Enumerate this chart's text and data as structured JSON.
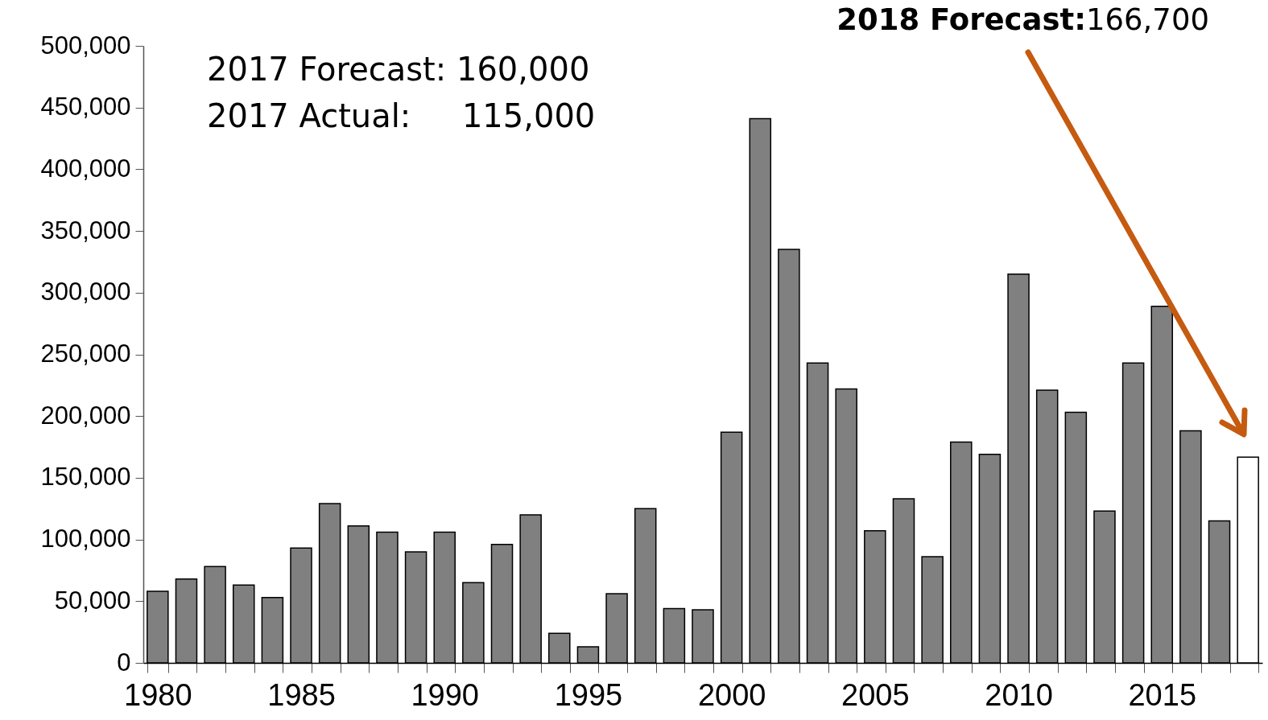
{
  "chart_data": {
    "type": "bar",
    "categories": [
      "1980",
      null,
      null,
      null,
      null,
      "1985",
      null,
      null,
      null,
      null,
      "1990",
      null,
      null,
      null,
      null,
      "1995",
      null,
      null,
      null,
      null,
      "2000",
      null,
      null,
      null,
      null,
      "2005",
      null,
      null,
      null,
      null,
      "2010",
      null,
      null,
      null,
      null,
      "2015",
      null,
      null,
      null
    ],
    "values": [
      58000,
      68000,
      78000,
      63000,
      53000,
      93000,
      129000,
      111000,
      106000,
      90000,
      106000,
      65000,
      96000,
      120000,
      24000,
      13000,
      56000,
      125000,
      44000,
      43000,
      187000,
      441000,
      335000,
      243000,
      222000,
      107000,
      133000,
      86000,
      179000,
      169000,
      315000,
      221000,
      203000,
      123000,
      243000,
      289000,
      188000,
      115000,
      166700
    ],
    "colors": [
      "#808080",
      "#808080",
      "#808080",
      "#808080",
      "#808080",
      "#808080",
      "#808080",
      "#808080",
      "#808080",
      "#808080",
      "#808080",
      "#808080",
      "#808080",
      "#808080",
      "#808080",
      "#808080",
      "#808080",
      "#808080",
      "#808080",
      "#808080",
      "#808080",
      "#808080",
      "#808080",
      "#808080",
      "#808080",
      "#808080",
      "#808080",
      "#808080",
      "#808080",
      "#808080",
      "#808080",
      "#808080",
      "#808080",
      "#808080",
      "#808080",
      "#808080",
      "#808080",
      "#808080",
      "#ffffff"
    ],
    "ylim": [
      0,
      500000
    ],
    "yticks": [
      0,
      {
        "value": 50000,
        "label": "50,000"
      },
      {
        "value": 100000,
        "label": "100,000"
      },
      {
        "value": 150000,
        "label": "150,000"
      },
      {
        "value": 200000,
        "label": "200,000"
      },
      {
        "value": 250000,
        "label": "250,000"
      },
      {
        "value": 300000,
        "label": "300,000"
      },
      {
        "value": 350000,
        "label": "350,000"
      },
      {
        "value": 400000,
        "label": "400,000"
      },
      {
        "value": 450000,
        "label": "450,000"
      },
      {
        "value": 500000,
        "label": "500,000"
      }
    ],
    "grid": false,
    "annotations": [
      "2017 Forecast: 160,000",
      "2017 Actual:     115,000",
      "2018 Forecast:166,700"
    ]
  }
}
